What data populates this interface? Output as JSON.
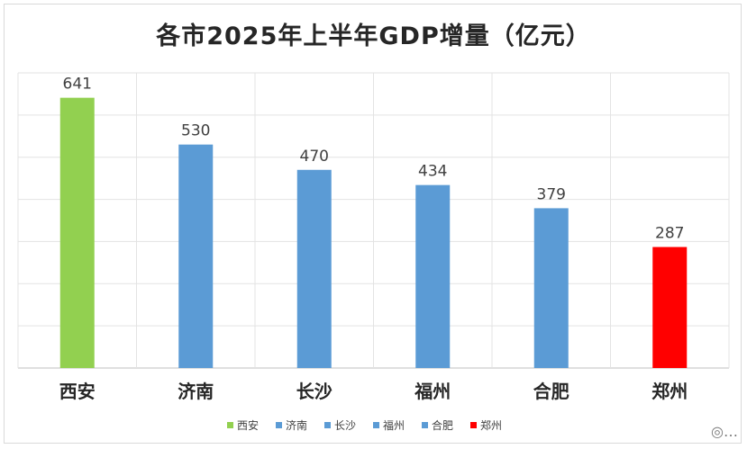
{
  "title": "各市2025年上半年GDP增量（亿元）",
  "watermark": "◎…",
  "colors": {
    "xian": "#92d050",
    "default": "#5b9bd5",
    "zhengzhou": "#ff0000"
  },
  "chart_data": {
    "type": "bar",
    "title": "各市2025年上半年GDP增量（亿元）",
    "categories": [
      "西安",
      "济南",
      "长沙",
      "福州",
      "合肥",
      "郑州"
    ],
    "values": [
      641,
      530,
      470,
      434,
      379,
      287
    ],
    "bar_colors": [
      "#92d050",
      "#5b9bd5",
      "#5b9bd5",
      "#5b9bd5",
      "#5b9bd5",
      "#ff0000"
    ],
    "ylim": [
      0,
      700
    ],
    "grid": true,
    "legend": "bottom",
    "data_labels": true
  }
}
